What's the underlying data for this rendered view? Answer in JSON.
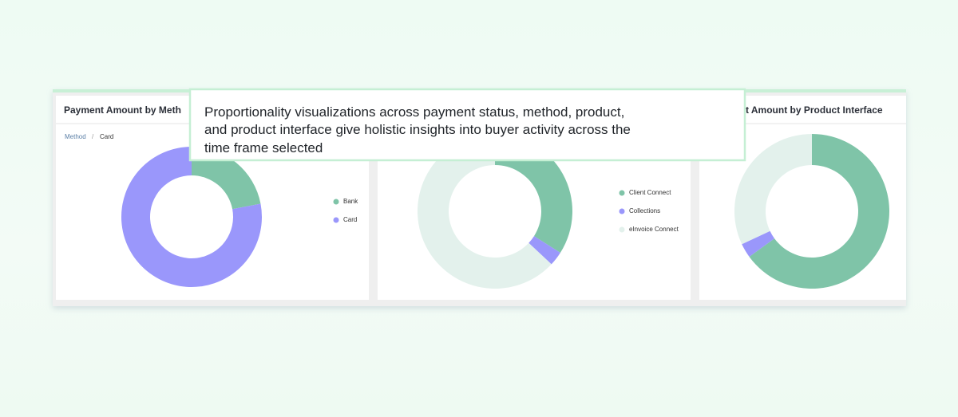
{
  "callout": {
    "lines": [
      "Proportionality visualizations across payment status, method, product,",
      "and product interface give holistic insights into buyer activity across the",
      "time frame selected"
    ]
  },
  "chart_data": [
    {
      "type": "donut",
      "title": "Payment Amount by Meth",
      "breadcrumb": [
        "Method",
        "Card"
      ],
      "separator": "/",
      "categories": [
        "Bank",
        "Card"
      ],
      "values": [
        22,
        78
      ],
      "colors": [
        "#7fc4a8",
        "#9a97fb"
      ]
    },
    {
      "type": "donut",
      "categories": [
        "Client Connect",
        "Collections",
        "eInvoice Connect"
      ],
      "values": [
        34,
        3,
        63
      ],
      "colors": [
        "#7fc4a8",
        "#9a97fb",
        "#e3f1ec"
      ]
    },
    {
      "type": "donut",
      "title": "t Amount by Product Interface",
      "categories": [
        null,
        null,
        null
      ],
      "values": [
        65,
        3,
        32
      ],
      "colors": [
        "#7fc4a8",
        "#9a97fb",
        "#e3f1ec"
      ]
    }
  ]
}
